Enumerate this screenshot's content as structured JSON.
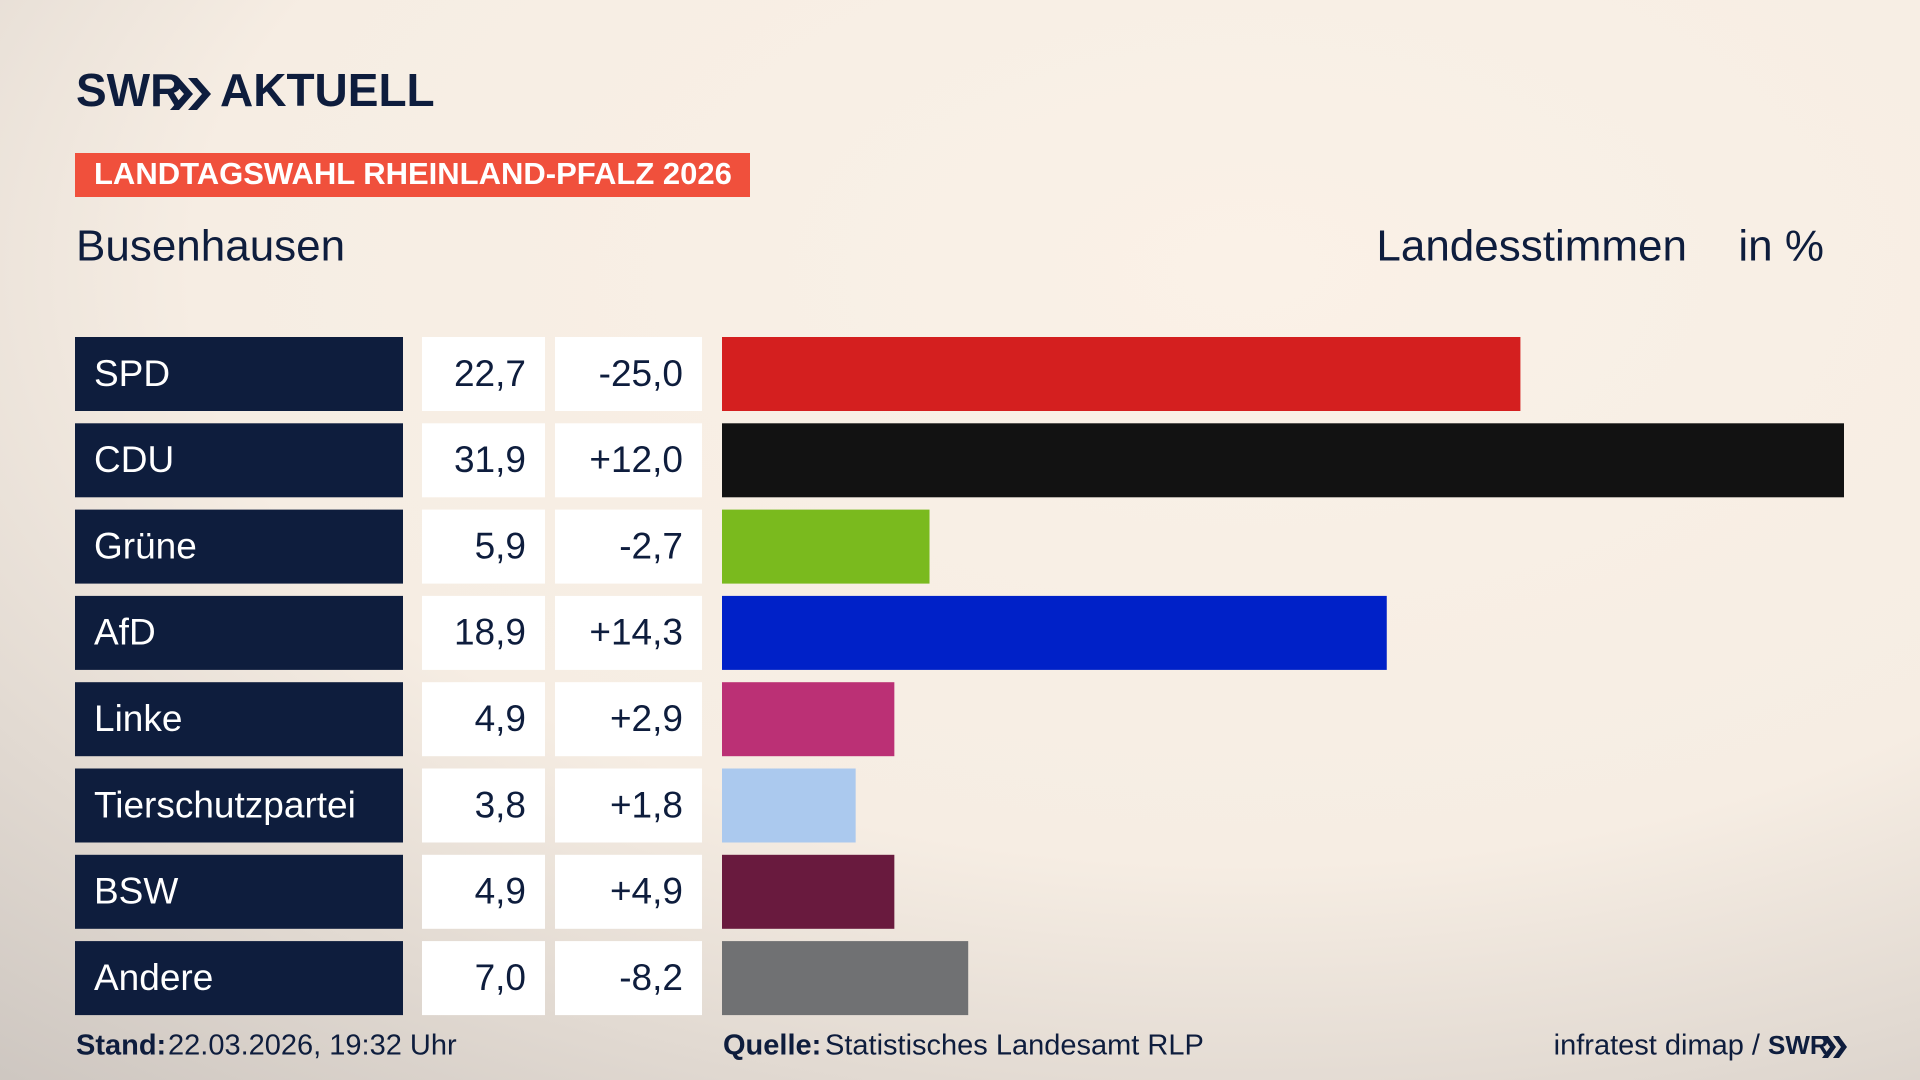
{
  "brand": {
    "name": "SWR",
    "product": "AKTUELL"
  },
  "tag": "LANDTAGSWAHL RHEINLAND-PFALZ 2026",
  "chart_data": {
    "type": "bar",
    "title": "Busenhausen",
    "subtitle": "Landesstimmen",
    "unit": "in %",
    "categories": [
      "SPD",
      "CDU",
      "Grüne",
      "AfD",
      "Linke",
      "Tierschutzpartei",
      "BSW",
      "Andere"
    ],
    "values": [
      22.7,
      31.9,
      5.9,
      18.9,
      4.9,
      3.8,
      4.9,
      7.0
    ],
    "value_labels": [
      "22,7",
      "31,9",
      "5,9",
      "18,9",
      "4,9",
      "3,8",
      "4,9",
      "7,0"
    ],
    "changes": [
      -25.0,
      12.0,
      -2.7,
      14.3,
      2.9,
      1.8,
      4.9,
      -8.2
    ],
    "change_labels": [
      "-25,0",
      "+12,0",
      "-2,7",
      "+14,3",
      "+2,9",
      "+1,8",
      "+4,9",
      "-8,2"
    ],
    "colors": [
      "#d41f1f",
      "#121212",
      "#7aba1e",
      "#0021c8",
      "#bb3075",
      "#abc9ee",
      "#691a3e",
      "#707173"
    ]
  },
  "footer": {
    "stand_label": "Stand:",
    "stand": "22.03.2026, 19:32 Uhr",
    "source_label": "Quelle:",
    "source": "Statistisches Landesamt RLP",
    "credit": "infratest dimap /",
    "credit_brand": "SWR"
  }
}
